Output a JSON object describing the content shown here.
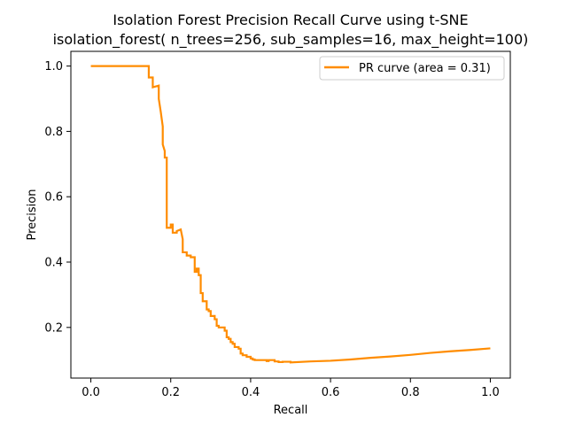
{
  "chart_data": {
    "type": "line",
    "title": "Isolation Forest Precision Recall Curve using t-SNE",
    "subtitle": "isolation_forest( n_trees=256, sub_samples=16, max_height=100)",
    "xlabel": "Recall",
    "ylabel": "Precision",
    "xlim": [
      -0.05,
      1.05
    ],
    "ylim": [
      0.045,
      1.045
    ],
    "xticks": [
      0.0,
      0.2,
      0.4,
      0.6,
      0.8,
      1.0
    ],
    "xtick_labels": [
      "0.0",
      "0.2",
      "0.4",
      "0.6",
      "0.8",
      "1.0"
    ],
    "yticks": [
      0.2,
      0.4,
      0.6,
      0.8,
      1.0
    ],
    "ytick_labels": [
      "0.2",
      "0.4",
      "0.6",
      "0.8",
      "1.0"
    ],
    "grid": false,
    "legend_position": "top-right",
    "series": [
      {
        "name": "PR curve (area = 0.31)",
        "color": "#ff8c00",
        "x": [
          0.0,
          0.14,
          0.145,
          0.145,
          0.155,
          0.155,
          0.17,
          0.17,
          0.175,
          0.18,
          0.18,
          0.185,
          0.185,
          0.19,
          0.19,
          0.2,
          0.2,
          0.205,
          0.205,
          0.215,
          0.215,
          0.225,
          0.23,
          0.23,
          0.24,
          0.24,
          0.25,
          0.25,
          0.26,
          0.26,
          0.265,
          0.265,
          0.27,
          0.27,
          0.275,
          0.275,
          0.28,
          0.28,
          0.29,
          0.29,
          0.295,
          0.295,
          0.3,
          0.3,
          0.31,
          0.31,
          0.315,
          0.315,
          0.32,
          0.32,
          0.335,
          0.335,
          0.34,
          0.34,
          0.345,
          0.345,
          0.35,
          0.35,
          0.355,
          0.355,
          0.36,
          0.36,
          0.37,
          0.37,
          0.375,
          0.375,
          0.38,
          0.38,
          0.39,
          0.39,
          0.4,
          0.4,
          0.405,
          0.405,
          0.41,
          0.41,
          0.44,
          0.44,
          0.445,
          0.445,
          0.46,
          0.46,
          0.47,
          0.47,
          0.48,
          0.48,
          0.5,
          0.5,
          0.55,
          0.6,
          0.65,
          0.7,
          0.75,
          0.8,
          0.85,
          0.9,
          0.95,
          1.0
        ],
        "y": [
          1.0,
          1.0,
          1.0,
          0.965,
          0.965,
          0.935,
          0.94,
          0.9,
          0.86,
          0.815,
          0.76,
          0.74,
          0.72,
          0.72,
          0.505,
          0.505,
          0.515,
          0.515,
          0.49,
          0.49,
          0.495,
          0.5,
          0.47,
          0.43,
          0.43,
          0.42,
          0.42,
          0.415,
          0.415,
          0.37,
          0.37,
          0.38,
          0.38,
          0.36,
          0.36,
          0.305,
          0.305,
          0.28,
          0.28,
          0.255,
          0.255,
          0.25,
          0.25,
          0.235,
          0.235,
          0.225,
          0.225,
          0.205,
          0.205,
          0.2,
          0.2,
          0.19,
          0.19,
          0.17,
          0.17,
          0.165,
          0.165,
          0.155,
          0.155,
          0.15,
          0.15,
          0.14,
          0.14,
          0.135,
          0.135,
          0.12,
          0.12,
          0.115,
          0.115,
          0.11,
          0.11,
          0.105,
          0.105,
          0.102,
          0.102,
          0.1,
          0.1,
          0.097,
          0.097,
          0.1,
          0.1,
          0.096,
          0.096,
          0.094,
          0.094,
          0.095,
          0.095,
          0.093,
          0.096,
          0.098,
          0.102,
          0.107,
          0.111,
          0.116,
          0.122,
          0.127,
          0.131,
          0.136
        ]
      }
    ]
  }
}
